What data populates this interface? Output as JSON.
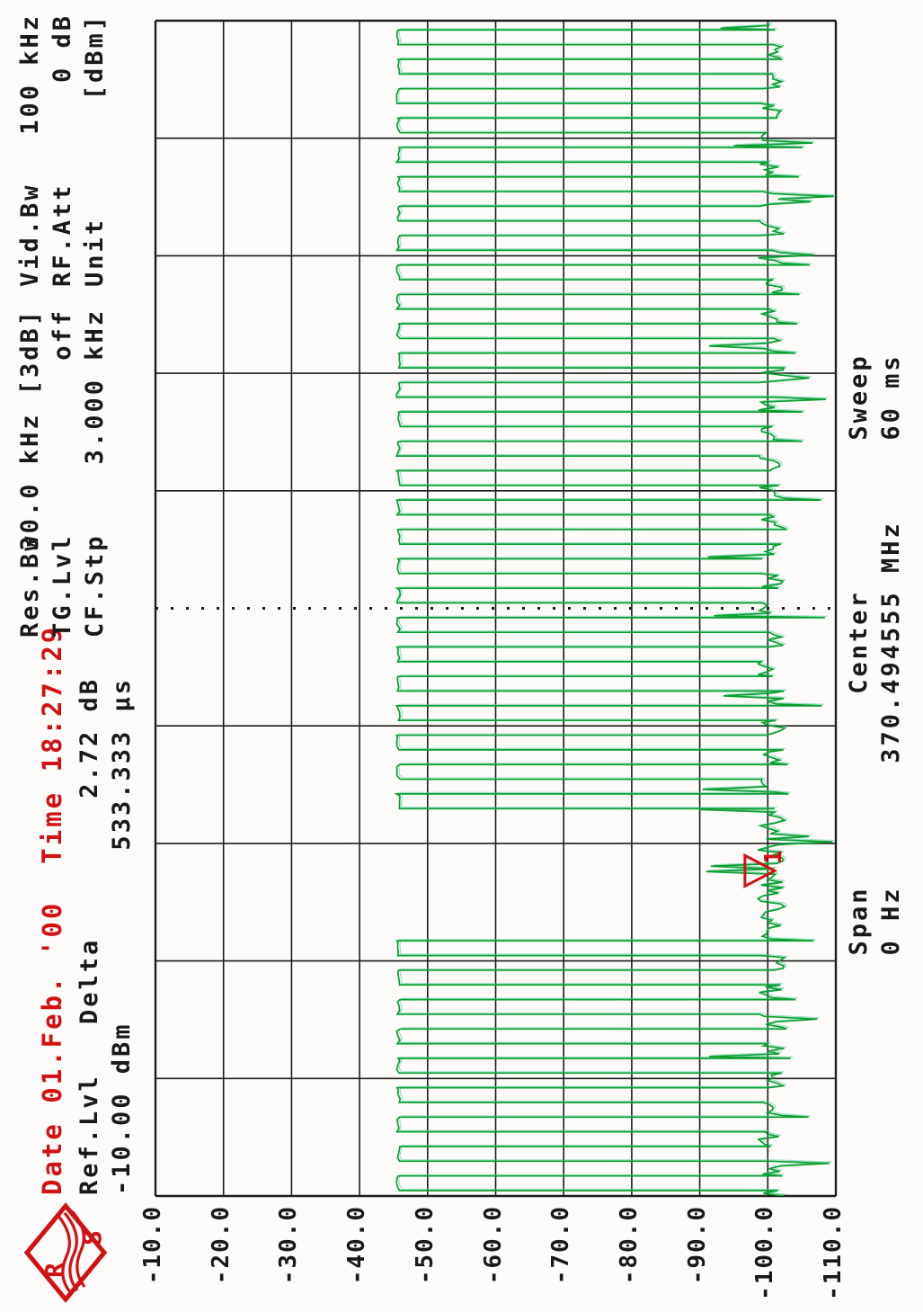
{
  "header": {
    "date_line": "Date 01.Feb. '00  Time 18:27:29",
    "ref_lvl": {
      "label": "Ref.Lvl",
      "value": "-10.00 dBm"
    },
    "delta": {
      "label": "Delta",
      "value_db": "2.72 dB",
      "value_time": "533.333 µs"
    },
    "res_bw": {
      "label": "Res.Bw",
      "value": "30.0 kHz [3dB]"
    },
    "tg_lvl": {
      "label": "TG.Lvl",
      "value": "off"
    },
    "cf_stp": {
      "label": "CF.Stp",
      "value": "3.000 kHz"
    },
    "vid_bw": {
      "label": "Vid.Bw",
      "value": "100 kHz"
    },
    "rf_att": {
      "label": "RF.Att",
      "value": "0 dB"
    },
    "unit": {
      "label": "Unit",
      "value": "[dBm]"
    }
  },
  "footer": {
    "span": {
      "label": "Span",
      "value": "0 Hz"
    },
    "center": {
      "label": "Center",
      "value": "370.494555 MHz"
    },
    "sweep": {
      "label": "Sweep",
      "value": "60 ms"
    }
  },
  "logo": {
    "r": "R",
    "s": "S"
  },
  "marker": {
    "id": "1"
  },
  "colors": {
    "trace": "#0a9e2f",
    "trace_echo": "#3fc39c",
    "grid": "#1c1c1c",
    "annotation_red": "#d21212",
    "text": "#191919"
  },
  "chart_data": {
    "type": "line",
    "title": "",
    "x_axis": {
      "unit": "ms",
      "range": [
        0,
        60
      ],
      "divisions": 10,
      "tick_labels": [],
      "grid": true,
      "center_line_style": "dotted"
    },
    "y_axis": {
      "unit": "dBm",
      "range": [
        -110,
        -10
      ],
      "divisions": 10,
      "grid": true,
      "tick_labels": [
        "-10.0",
        "-20.0",
        "-30.0",
        "-40.0",
        "-50.0",
        "-60.0",
        "-70.0",
        "-80.0",
        "-90.0",
        "-100.0",
        "-110.0"
      ]
    },
    "trace": {
      "description": "Zero-span time-domain trace of a pulsed/TDMA burst signal",
      "burst_level_dbm": -45.7,
      "noise_floor_dbm": -100.5,
      "burst_period_ms": 1.5,
      "burst_on_ms": 0.75,
      "burst_active_ranges_ms": [
        [
          0,
          13.3
        ],
        [
          19.5,
          60
        ]
      ],
      "gap_range_ms": [
        13.3,
        19.5
      ]
    },
    "marker": {
      "name": "1",
      "time_ms": 16.6,
      "level_dbm": -101
    }
  }
}
